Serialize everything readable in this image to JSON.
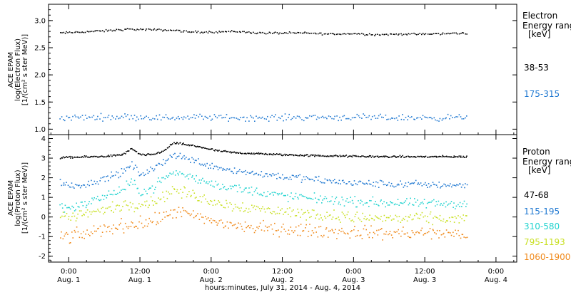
{
  "figure": {
    "title": "ACE EPAM",
    "xlabel": "hours:minutes, July 31, 2014 - Aug.  4, 2014"
  },
  "x_ticks": [
    {
      "time": "0:00",
      "date": "Aug. 1",
      "hours": 0
    },
    {
      "time": "12:00",
      "date": "Aug. 1",
      "hours": 12
    },
    {
      "time": "0:00",
      "date": "Aug. 2",
      "hours": 24
    },
    {
      "time": "12:00",
      "date": "Aug. 2",
      "hours": 36
    },
    {
      "time": "0:00",
      "date": "Aug. 3",
      "hours": 48
    },
    {
      "time": "12:00",
      "date": "Aug. 3",
      "hours": 60
    },
    {
      "time": "0:00",
      "date": "Aug. 4",
      "hours": 72
    }
  ],
  "chart_data": [
    {
      "type": "scatter",
      "panel": "electron",
      "ylabel_line1": "ACE EPAM",
      "ylabel_line2": "log(Electron Flux)",
      "ylabel_line3": "[1/(cm² s ster MeV)]",
      "ylim": [
        0.9,
        3.3
      ],
      "xlim": [
        -3.4,
        75.5
      ],
      "x_units": "hours since Aug. 1 0:00",
      "yticks": [
        "1.0",
        "1.5",
        "2.0",
        "2.5",
        "3.0"
      ],
      "ytick_values": [
        1.0,
        1.5,
        2.0,
        2.5,
        3.0
      ],
      "legend_title_line1": "Electron",
      "legend_title_line2": "Energy ranges",
      "legend_units": "[keV]",
      "series": [
        {
          "name": "38-53",
          "color": "#000000",
          "x": [
            -1.5,
            2,
            6,
            10,
            14,
            18,
            20,
            24,
            28,
            32,
            36,
            40,
            44,
            48,
            52,
            56,
            60,
            64,
            66,
            67
          ],
          "y": [
            2.78,
            2.8,
            2.82,
            2.85,
            2.84,
            2.83,
            2.8,
            2.8,
            2.81,
            2.78,
            2.78,
            2.78,
            2.76,
            2.77,
            2.75,
            2.76,
            2.76,
            2.77,
            2.78,
            2.76
          ]
        },
        {
          "name": "175-315",
          "color": "#1f78d1",
          "x": [
            -1.5,
            4,
            10,
            16,
            22,
            28,
            34,
            40,
            46,
            52,
            58,
            64,
            67
          ],
          "y": [
            1.22,
            1.23,
            1.24,
            1.22,
            1.23,
            1.22,
            1.22,
            1.23,
            1.23,
            1.22,
            1.22,
            1.22,
            1.23
          ]
        }
      ]
    },
    {
      "type": "scatter",
      "panel": "proton",
      "ylabel_line1": "ACE EPAM",
      "ylabel_line2": "log(Proton Flux)",
      "ylabel_line3": "[1/(cm² s ster MeV)]",
      "ylim": [
        -2.3,
        4.2
      ],
      "xlim": [
        -3.4,
        75.5
      ],
      "x_units": "hours since Aug. 1 0:00",
      "yticks": [
        "-2",
        "-1",
        "0",
        "1",
        "2",
        "3",
        "4"
      ],
      "ytick_values": [
        -2,
        -1,
        0,
        1,
        2,
        3,
        4
      ],
      "legend_title_line1": "Proton",
      "legend_title_line2": "Energy ranges",
      "legend_units": "[keV]",
      "series": [
        {
          "name": "47-68",
          "color": "#000000",
          "x": [
            -1.5,
            2,
            6,
            9,
            10.5,
            12,
            14,
            16,
            17.5,
            19,
            22,
            25,
            28,
            32,
            36,
            42,
            48,
            54,
            60,
            67
          ],
          "y": [
            3.05,
            3.08,
            3.12,
            3.2,
            3.5,
            3.2,
            3.2,
            3.4,
            3.8,
            3.75,
            3.6,
            3.4,
            3.3,
            3.25,
            3.2,
            3.15,
            3.12,
            3.1,
            3.1,
            3.1
          ]
        },
        {
          "name": "115-195",
          "color": "#1f78d1",
          "x": [
            -1.5,
            0,
            3,
            6,
            9,
            10.5,
            12,
            14,
            16,
            17.5,
            19,
            22,
            26,
            30,
            36,
            42,
            48,
            54,
            60,
            67
          ],
          "y": [
            1.8,
            1.6,
            1.7,
            2.0,
            2.3,
            2.7,
            2.2,
            2.4,
            2.9,
            3.2,
            3.1,
            2.8,
            2.5,
            2.3,
            2.1,
            1.9,
            1.75,
            1.7,
            1.68,
            1.65
          ]
        },
        {
          "name": "310-580",
          "color": "#22d3cf",
          "x": [
            -1.5,
            0,
            3,
            6,
            9,
            10.5,
            12,
            14,
            16,
            17.5,
            19,
            22,
            26,
            30,
            36,
            42,
            48,
            54,
            60,
            67
          ],
          "y": [
            0.6,
            0.5,
            0.7,
            1.1,
            1.4,
            1.8,
            1.3,
            1.5,
            2.0,
            2.3,
            2.2,
            1.9,
            1.6,
            1.4,
            1.1,
            0.95,
            0.8,
            0.75,
            0.7,
            0.7
          ]
        },
        {
          "name": "795-1193",
          "color": "#c9e024",
          "x": [
            -1.5,
            0,
            3,
            6,
            9,
            12,
            14,
            16,
            17.5,
            19,
            22,
            26,
            30,
            36,
            42,
            48,
            54,
            60,
            67
          ],
          "y": [
            0.1,
            0.0,
            0.2,
            0.4,
            0.6,
            0.7,
            0.8,
            1.1,
            1.4,
            1.3,
            1.0,
            0.7,
            0.5,
            0.3,
            0.15,
            0.0,
            -0.05,
            -0.05,
            -0.1
          ]
        },
        {
          "name": "1060-1900",
          "color": "#f08a1c",
          "x": [
            -1.5,
            0,
            3,
            6,
            9,
            12,
            14,
            16,
            17.5,
            19,
            22,
            26,
            30,
            36,
            42,
            48,
            54,
            60,
            67
          ],
          "y": [
            -0.9,
            -1.0,
            -0.8,
            -0.6,
            -0.4,
            -0.3,
            -0.2,
            0.0,
            0.3,
            0.25,
            -0.05,
            -0.3,
            -0.5,
            -0.6,
            -0.7,
            -0.75,
            -0.8,
            -0.8,
            -0.85
          ]
        }
      ]
    }
  ]
}
